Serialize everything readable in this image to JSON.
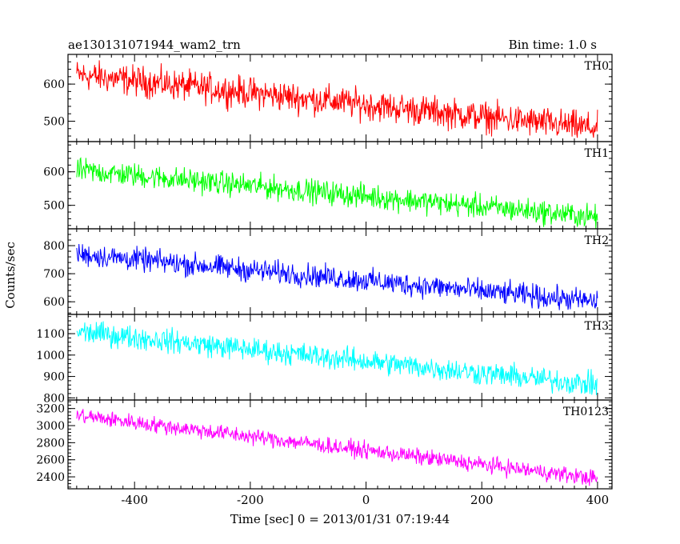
{
  "header": {
    "title": "ae130131071944_wam2_trn",
    "bin_time": "Bin time: 1.0 s"
  },
  "chart_data": {
    "type": "line",
    "xlabel": "Time [sec] 0 = 2013/01/31 07:19:44",
    "ylabel": "Counts/sec",
    "xlim": [
      -515,
      425
    ],
    "x_ticks": [
      -400,
      -200,
      0,
      200,
      400
    ],
    "x_data_range": [
      -500,
      400
    ],
    "panels": [
      {
        "name": "TH0",
        "color": "#ff0000",
        "ylim": [
          445,
          680
        ],
        "y_ticks": [
          500,
          600
        ],
        "trend": [
          [
            -500,
            625
          ],
          [
            400,
            480
          ]
        ],
        "noise_amplitude": 30
      },
      {
        "name": "TH1",
        "color": "#00ff00",
        "ylim": [
          430,
          690
        ],
        "y_ticks": [
          500,
          600
        ],
        "trend": [
          [
            -500,
            605
          ],
          [
            400,
            465
          ]
        ],
        "noise_amplitude": 26
      },
      {
        "name": "TH2",
        "color": "#0000ff",
        "ylim": [
          555,
          860
        ],
        "y_ticks": [
          600,
          700,
          800
        ],
        "trend": [
          [
            -500,
            770
          ],
          [
            400,
            600
          ]
        ],
        "noise_amplitude": 30
      },
      {
        "name": "TH3",
        "color": "#00ffff",
        "ylim": [
          790,
          1190
        ],
        "y_ticks": [
          800,
          900,
          1000,
          1100
        ],
        "trend": [
          [
            -500,
            1110
          ],
          [
            400,
            860
          ]
        ],
        "noise_amplitude": 40
      },
      {
        "name": "TH0123",
        "color": "#ff00ff",
        "ylim": [
          2260,
          3300
        ],
        "y_ticks": [
          2400,
          2600,
          2800,
          3000,
          3200
        ],
        "trend": [
          [
            -500,
            3120
          ],
          [
            400,
            2380
          ]
        ],
        "noise_amplitude": 70
      }
    ]
  }
}
